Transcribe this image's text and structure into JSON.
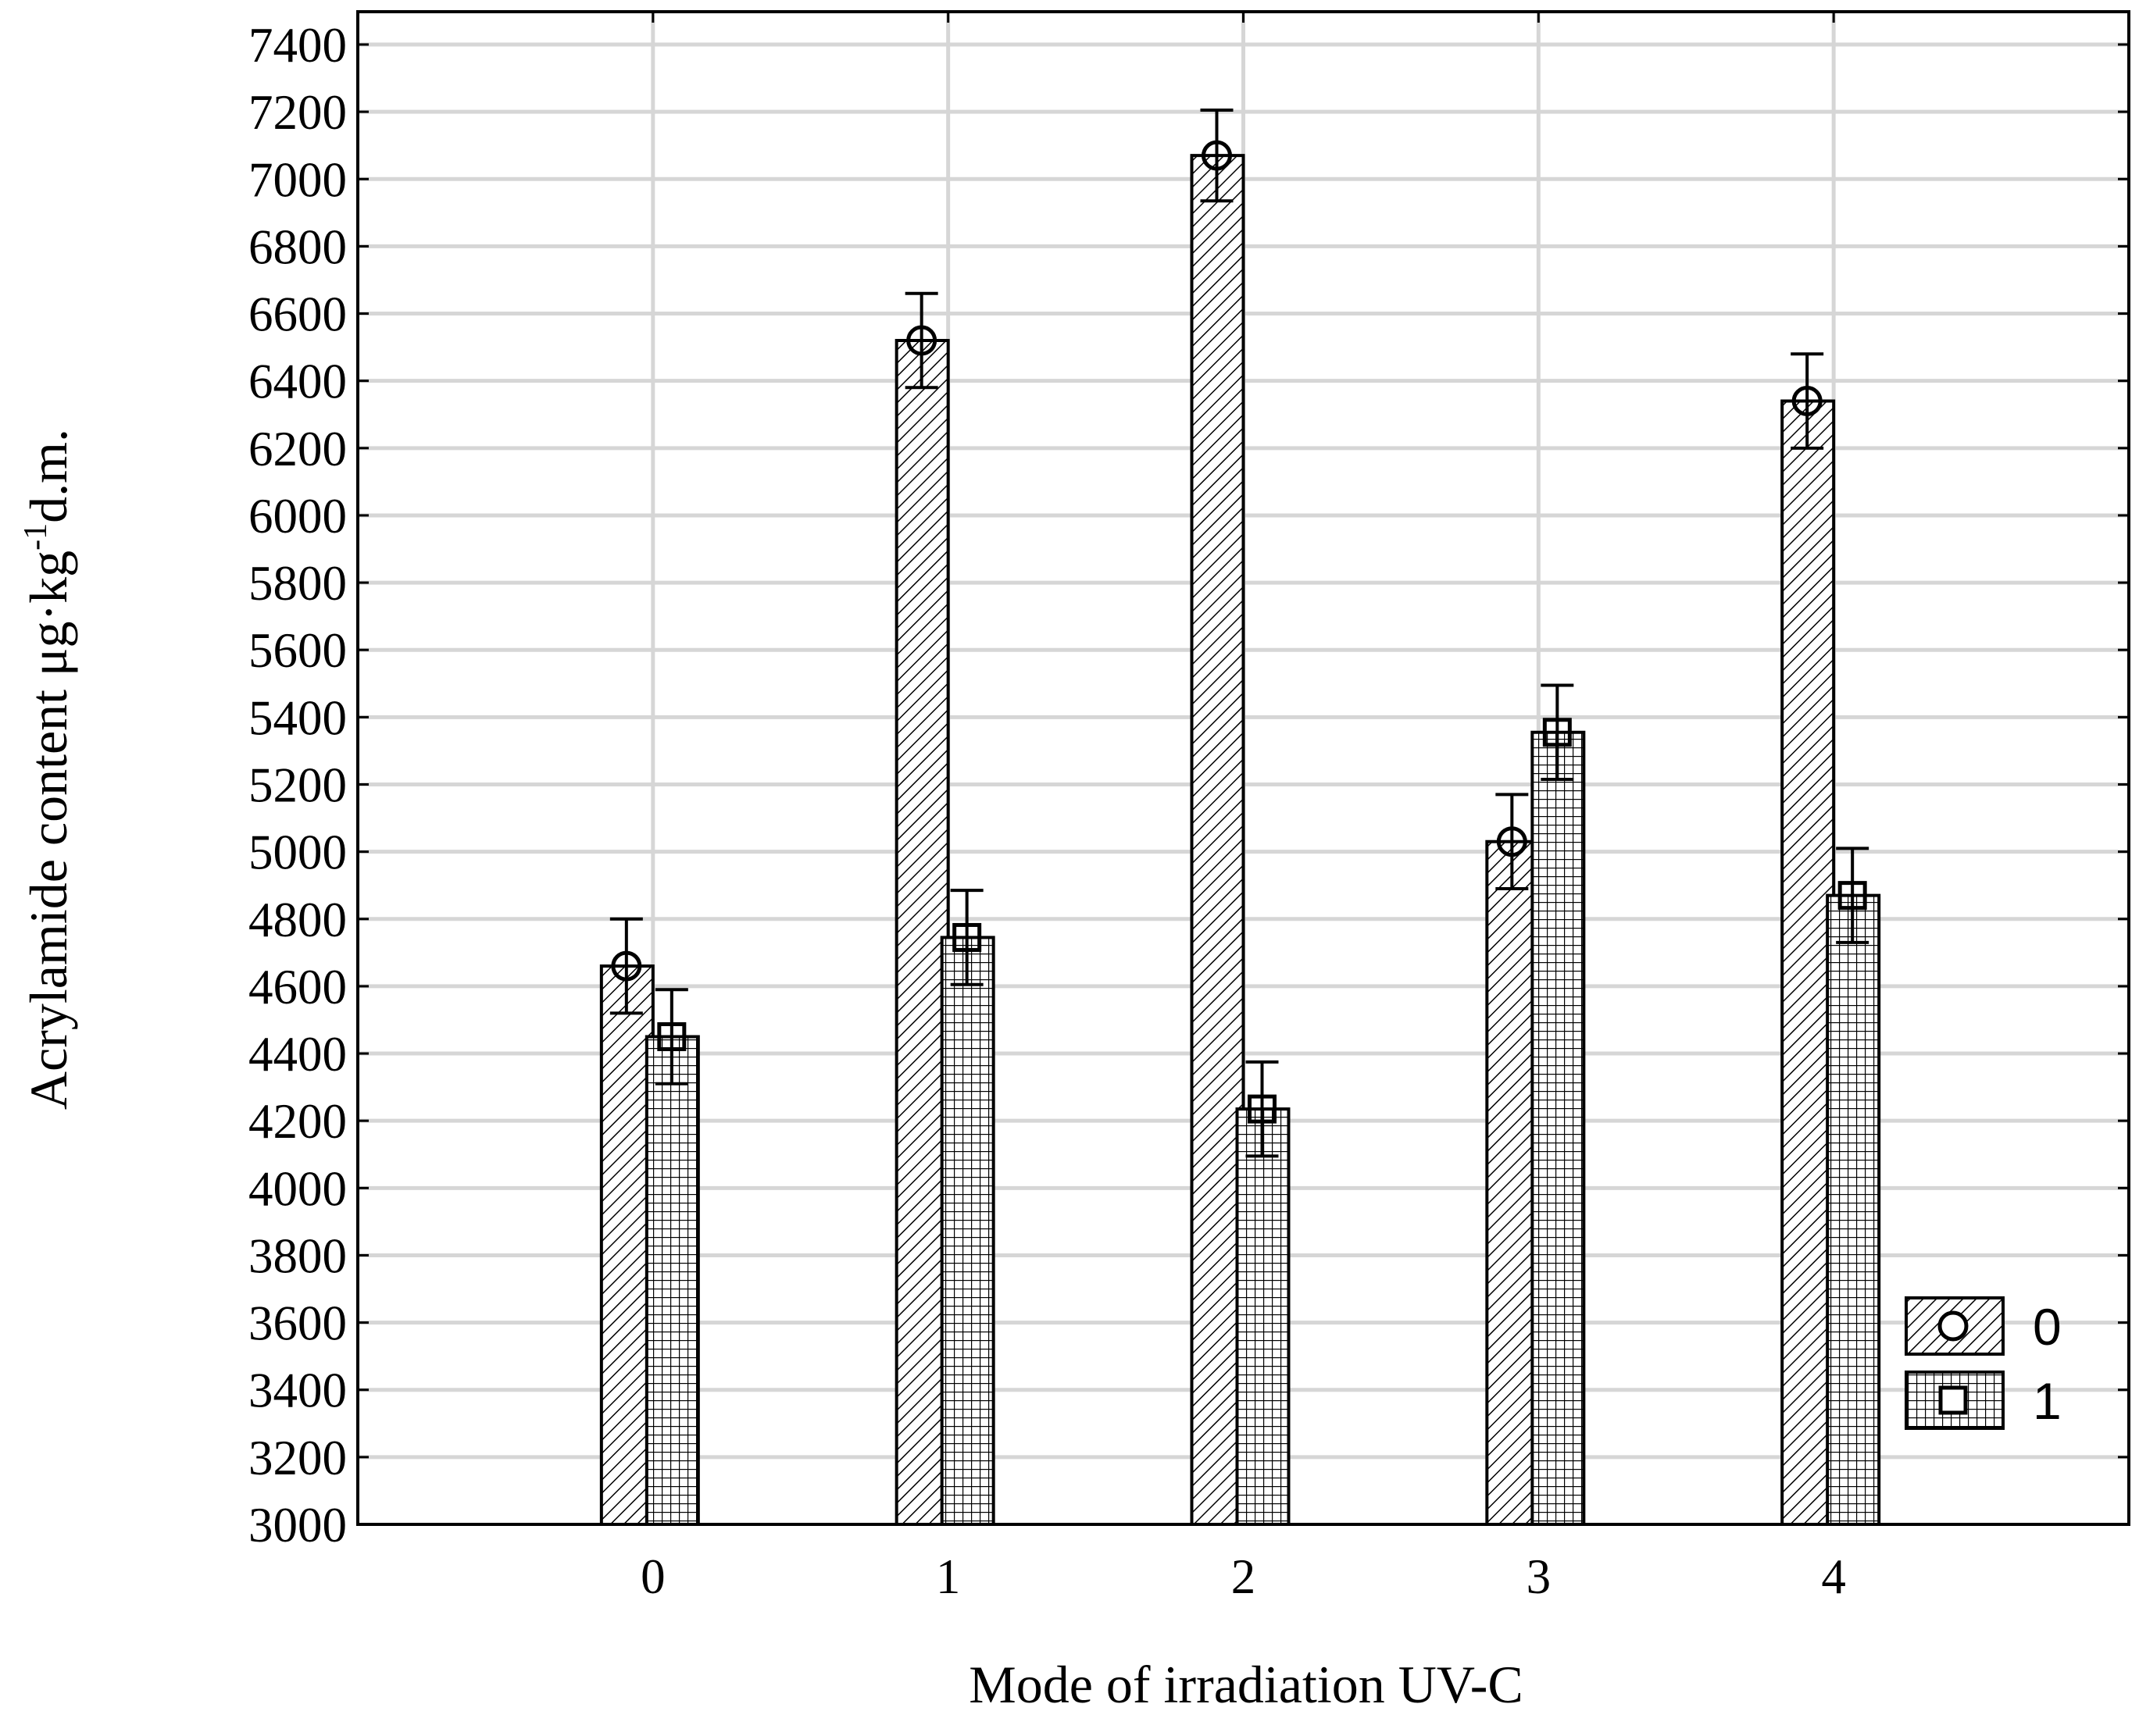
{
  "chart_data": {
    "type": "bar",
    "title": "",
    "xlabel": "Mode of irradiation  UV-C",
    "ylabel_main": "Acrylamide content μg·kg",
    "ylabel_sup": "-1",
    "ylabel_tail": "d.m.",
    "categories": [
      "0",
      "1",
      "2",
      "3",
      "4"
    ],
    "ylim": [
      3000,
      7400
    ],
    "yticks": [
      3000,
      3200,
      3400,
      3600,
      3800,
      4000,
      4200,
      4400,
      4600,
      4800,
      5000,
      5200,
      5400,
      5600,
      5800,
      6000,
      6200,
      6400,
      6600,
      6800,
      7000,
      7200,
      7400
    ],
    "xlim": [
      -1,
      5
    ],
    "grid": true,
    "legend_position": "bottom-right",
    "series": [
      {
        "name": "0",
        "marker": "circle",
        "pattern": "diagonal-hatch",
        "values": [
          4660,
          6520,
          7070,
          5030,
          6340
        ],
        "error": [
          140,
          140,
          135,
          140,
          140
        ]
      },
      {
        "name": "1",
        "marker": "square",
        "pattern": "grid-hatch",
        "values": [
          4450,
          4745,
          4235,
          5355,
          4870
        ],
        "error": [
          140,
          140,
          140,
          140,
          140
        ]
      }
    ]
  }
}
